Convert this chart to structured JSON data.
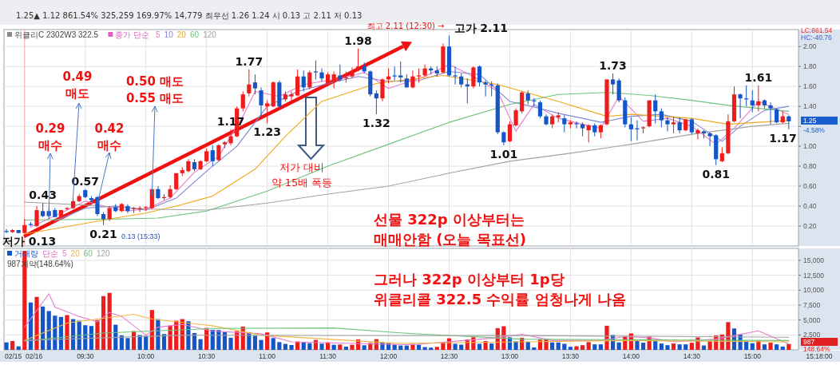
{
  "chart_data": [
    {
      "type": "candlestick",
      "title": "위클리C 2302W3 322.5",
      "legend_title": "종가 단순",
      "legend": "top left",
      "grid": true,
      "tick_labels": "y",
      "xlim": [
        8.83,
        15.38
      ],
      "xticks": [
        {
          "value": 9.5,
          "label": null
        },
        {
          "value": 10,
          "label": null
        },
        {
          "value": 10.5,
          "label": null
        },
        {
          "value": 11,
          "label": null
        },
        {
          "value": 11.5,
          "label": null
        },
        {
          "value": 12,
          "label": null
        },
        {
          "value": 12.5,
          "label": null
        },
        {
          "value": 13,
          "label": null
        },
        {
          "value": 13.5,
          "label": null
        },
        {
          "value": 14,
          "label": null
        },
        {
          "value": 14.5,
          "label": null
        },
        {
          "value": 15,
          "label": null
        }
      ],
      "ylim": [
        0,
        2.17
      ],
      "yticks": [
        {
          "value": 0.2,
          "label": "0.20"
        },
        {
          "value": 0.4,
          "label": "0.40"
        },
        {
          "value": 0.6,
          "label": "0.60"
        },
        {
          "value": 0.8,
          "label": "0.80"
        },
        {
          "value": 1,
          "label": "1.00"
        },
        {
          "value": 1.2,
          "label": null
        },
        {
          "value": 1.4,
          "label": "1.40"
        },
        {
          "value": 1.6,
          "label": "1.60"
        },
        {
          "value": 1.8,
          "label": "1.80"
        },
        {
          "value": 2,
          "label": "2.00"
        }
      ],
      "x": [
        8.85,
        8.9,
        8.95,
        9,
        9.05,
        9.1,
        9.15,
        9.2,
        9.25,
        9.3,
        9.35,
        9.4,
        9.45,
        9.5,
        9.55,
        9.6,
        9.65,
        9.7,
        9.75,
        9.8,
        9.85,
        9.9,
        9.95,
        10,
        10.05,
        10.1,
        10.15,
        10.2,
        10.25,
        10.3,
        10.35,
        10.4,
        10.45,
        10.5,
        10.55,
        10.6,
        10.65,
        10.7,
        10.75,
        10.8,
        10.85,
        10.9,
        10.95,
        11,
        11.05,
        11.1,
        11.15,
        11.2,
        11.25,
        11.3,
        11.35,
        11.4,
        11.45,
        11.5,
        11.55,
        11.6,
        11.65,
        11.7,
        11.75,
        11.8,
        11.85,
        11.9,
        11.95,
        12,
        12.05,
        12.1,
        12.15,
        12.2,
        12.25,
        12.3,
        12.35,
        12.4,
        12.45,
        12.5,
        12.55,
        12.6,
        12.65,
        12.7,
        12.75,
        12.8,
        12.85,
        12.9,
        12.95,
        13,
        13.05,
        13.1,
        13.15,
        13.2,
        13.25,
        13.3,
        13.35,
        13.4,
        13.45,
        13.5,
        13.55,
        13.6,
        13.65,
        13.7,
        13.75,
        13.8,
        13.85,
        13.9,
        13.95,
        14,
        14.05,
        14.1,
        14.15,
        14.2,
        14.25,
        14.3,
        14.35,
        14.4,
        14.45,
        14.5,
        14.55,
        14.6,
        14.65,
        14.7,
        14.75,
        14.8,
        14.85,
        14.9,
        14.95,
        15,
        15.05,
        15.1,
        15.15,
        15.2,
        15.25,
        15.3
      ],
      "ohlc": [
        [
          0.15,
          0.17,
          0.13,
          0.14
        ],
        [
          0.14,
          0.17,
          0.13,
          0.16
        ],
        [
          0.16,
          0.16,
          0.13,
          0.13
        ],
        [
          0.13,
          0.27,
          0.13,
          0.21
        ],
        [
          0.22,
          0.24,
          0.2,
          0.21
        ],
        [
          0.2,
          0.4,
          0.19,
          0.36
        ],
        [
          0.35,
          0.43,
          0.29,
          0.3
        ],
        [
          0.35,
          0.39,
          0.27,
          0.3
        ],
        [
          0.36,
          0.38,
          0.29,
          0.29
        ],
        [
          0.29,
          0.36,
          0.28,
          0.36
        ],
        [
          0.37,
          0.39,
          0.36,
          0.38
        ],
        [
          0.38,
          0.49,
          0.37,
          0.45
        ],
        [
          0.45,
          0.52,
          0.44,
          0.5
        ],
        [
          0.56,
          0.57,
          0.48,
          0.49
        ],
        [
          0.48,
          0.5,
          0.44,
          0.46
        ],
        [
          0.49,
          0.5,
          0.3,
          0.32
        ],
        [
          0.32,
          0.34,
          0.21,
          0.27
        ],
        [
          0.27,
          0.4,
          0.25,
          0.38
        ],
        [
          0.39,
          0.42,
          0.34,
          0.35
        ],
        [
          0.35,
          0.43,
          0.34,
          0.42
        ],
        [
          0.4,
          0.42,
          0.33,
          0.35
        ],
        [
          0.37,
          0.39,
          0.33,
          0.38
        ],
        [
          0.37,
          0.4,
          0.34,
          0.38
        ],
        [
          0.38,
          0.4,
          0.35,
          0.39
        ],
        [
          0.38,
          0.57,
          0.37,
          0.57
        ],
        [
          0.57,
          0.6,
          0.47,
          0.48
        ],
        [
          0.48,
          0.52,
          0.46,
          0.49
        ],
        [
          0.49,
          0.61,
          0.48,
          0.57
        ],
        [
          0.57,
          0.73,
          0.56,
          0.73
        ],
        [
          0.73,
          0.79,
          0.7,
          0.76
        ],
        [
          0.75,
          0.87,
          0.74,
          0.85
        ],
        [
          0.84,
          0.87,
          0.75,
          0.77
        ],
        [
          0.77,
          0.86,
          0.76,
          0.85
        ],
        [
          0.85,
          0.98,
          0.84,
          0.95
        ],
        [
          0.96,
          1.01,
          0.8,
          0.85
        ],
        [
          0.86,
          1.02,
          0.85,
          1.01
        ],
        [
          1.02,
          1.05,
          0.98,
          1.04
        ],
        [
          1.03,
          1.17,
          1.01,
          1.1
        ],
        [
          1.1,
          1.4,
          1.09,
          1.38
        ],
        [
          1.38,
          1.55,
          1.35,
          1.52
        ],
        [
          1.53,
          1.77,
          1.5,
          1.62
        ],
        [
          1.64,
          1.72,
          1.52,
          1.58
        ],
        [
          1.56,
          1.59,
          1.3,
          1.41
        ],
        [
          1.4,
          1.46,
          1.23,
          1.43
        ],
        [
          1.4,
          1.65,
          1.39,
          1.64
        ],
        [
          1.64,
          1.66,
          1.38,
          1.4
        ],
        [
          1.47,
          1.55,
          1.45,
          1.52
        ],
        [
          1.5,
          1.55,
          1.46,
          1.52
        ],
        [
          1.51,
          1.77,
          1.5,
          1.7
        ],
        [
          1.7,
          1.76,
          1.55,
          1.59
        ],
        [
          1.59,
          1.76,
          1.57,
          1.74
        ],
        [
          1.75,
          1.86,
          1.67,
          1.74
        ],
        [
          1.74,
          1.78,
          1.65,
          1.68
        ],
        [
          1.63,
          1.74,
          1.6,
          1.72
        ],
        [
          1.64,
          1.75,
          1.58,
          1.72
        ],
        [
          1.71,
          1.82,
          1.65,
          1.67
        ],
        [
          1.68,
          1.75,
          1.64,
          1.69
        ],
        [
          1.7,
          1.79,
          1.68,
          1.75
        ],
        [
          1.76,
          1.98,
          1.75,
          1.8
        ],
        [
          1.8,
          1.84,
          1.73,
          1.75
        ],
        [
          1.75,
          1.76,
          1.5,
          1.52
        ],
        [
          1.53,
          1.56,
          1.32,
          1.48
        ],
        [
          1.48,
          1.68,
          1.45,
          1.67
        ],
        [
          1.67,
          1.78,
          1.63,
          1.7
        ],
        [
          1.71,
          1.8,
          1.66,
          1.7
        ],
        [
          1.71,
          1.85,
          1.64,
          1.69
        ],
        [
          1.68,
          1.72,
          1.59,
          1.59
        ],
        [
          1.59,
          1.76,
          1.58,
          1.7
        ],
        [
          1.7,
          1.78,
          1.64,
          1.71
        ],
        [
          1.71,
          1.82,
          1.7,
          1.78
        ],
        [
          1.78,
          1.8,
          1.72,
          1.76
        ],
        [
          1.76,
          1.8,
          1.7,
          1.73
        ],
        [
          1.74,
          2.03,
          1.73,
          2
        ],
        [
          2,
          2.11,
          1.7,
          1.71
        ],
        [
          1.71,
          1.8,
          1.62,
          1.7
        ],
        [
          1.7,
          1.73,
          1.59,
          1.62
        ],
        [
          1.62,
          1.68,
          1.43,
          1.6
        ],
        [
          1.6,
          1.8,
          1.58,
          1.79
        ],
        [
          1.8,
          1.81,
          1.6,
          1.64
        ],
        [
          1.64,
          1.66,
          1.5,
          1.62
        ],
        [
          1.62,
          1.65,
          1.5,
          1.61
        ],
        [
          1.61,
          1.63,
          1.12,
          1.14
        ],
        [
          1.14,
          1.15,
          1.01,
          1.04
        ],
        [
          1.05,
          1.25,
          1.04,
          1.22
        ],
        [
          1.21,
          1.38,
          1.2,
          1.36
        ],
        [
          1.35,
          1.55,
          1.33,
          1.54
        ],
        [
          1.53,
          1.56,
          1.42,
          1.46
        ],
        [
          1.46,
          1.48,
          1.4,
          1.45
        ],
        [
          1.44,
          1.46,
          1.28,
          1.3
        ],
        [
          1.3,
          1.32,
          1.21,
          1.22
        ],
        [
          1.22,
          1.32,
          1.18,
          1.3
        ],
        [
          1.29,
          1.34,
          1.24,
          1.31
        ],
        [
          1.28,
          1.31,
          1.14,
          1.22
        ],
        [
          1.22,
          1.26,
          1.18,
          1.24
        ],
        [
          1.23,
          1.25,
          1.18,
          1.22
        ],
        [
          1.22,
          1.24,
          1.1,
          1.18
        ],
        [
          1.16,
          1.22,
          1.04,
          1.21
        ],
        [
          1.21,
          1.23,
          1.1,
          1.14
        ],
        [
          1.14,
          1.22,
          1.08,
          1.21
        ],
        [
          1.22,
          1.67,
          1.21,
          1.67
        ],
        [
          1.67,
          1.73,
          1.52,
          1.62
        ],
        [
          1.66,
          1.68,
          1.44,
          1.46
        ],
        [
          1.46,
          1.49,
          1.19,
          1.22
        ],
        [
          1.22,
          1.29,
          1.05,
          1.17
        ],
        [
          1.18,
          1.26,
          1.06,
          1.17
        ],
        [
          1.18,
          1.2,
          1.13,
          1.19
        ],
        [
          1.2,
          1.46,
          1.19,
          1.46
        ],
        [
          1.46,
          1.52,
          1.23,
          1.35
        ],
        [
          1.35,
          1.38,
          1.19,
          1.26
        ],
        [
          1.26,
          1.29,
          1.15,
          1.22
        ],
        [
          1.22,
          1.3,
          1.13,
          1.24
        ],
        [
          1.24,
          1.29,
          1.13,
          1.16
        ],
        [
          1.16,
          1.27,
          1.15,
          1.27
        ],
        [
          1.27,
          1.28,
          1.12,
          1.14
        ],
        [
          1.13,
          1.18,
          1.07,
          1.16
        ],
        [
          1.15,
          1.16,
          1.08,
          1.13
        ],
        [
          1.13,
          1.14,
          1,
          1.1
        ],
        [
          1.11,
          1.12,
          0.81,
          0.87
        ],
        [
          0.85,
          0.99,
          0.84,
          0.93
        ],
        [
          0.93,
          1.32,
          0.92,
          1.25
        ],
        [
          1.25,
          1.6,
          1.24,
          1.52
        ],
        [
          1.52,
          1.53,
          1.28,
          1.48
        ],
        [
          1.48,
          1.61,
          1.4,
          1.47
        ],
        [
          1.46,
          1.56,
          1.34,
          1.41
        ],
        [
          1.41,
          1.61,
          1.35,
          1.45
        ],
        [
          1.46,
          1.47,
          1.38,
          1.41
        ],
        [
          1.41,
          1.44,
          1.22,
          1.38
        ],
        [
          1.37,
          1.38,
          1.23,
          1.24
        ],
        [
          1.24,
          1.35,
          1.23,
          1.3
        ],
        [
          1.3,
          1.31,
          1.17,
          1.25
        ]
      ],
      "colors": [
        "#1456c8",
        "#ee1c1c",
        "#1456c8",
        "#ee1c1c",
        "#1456c8",
        "#ee1c1c",
        "#1456c8",
        "#1456c8",
        "#1456c8",
        "#ee1c1c",
        "#ee1c1c",
        "#ee1c1c",
        "#ee1c1c",
        "#1456c8",
        "#1456c8",
        "#1456c8",
        "#1456c8",
        "#ee1c1c",
        "#1456c8",
        "#ee1c1c",
        "#1456c8",
        "#ee1c1c",
        "#ee1c1c",
        "#ee1c1c",
        "#ee1c1c",
        "#1456c8",
        "#ee1c1c",
        "#ee1c1c",
        "#ee1c1c",
        "#ee1c1c",
        "#ee1c1c",
        "#1456c8",
        "#ee1c1c",
        "#ee1c1c",
        "#1456c8",
        "#ee1c1c",
        "#ee1c1c",
        "#ee1c1c",
        "#ee1c1c",
        "#ee1c1c",
        "#ee1c1c",
        "#1456c8",
        "#1456c8",
        "#ee1c1c",
        "#ee1c1c",
        "#1456c8",
        "#ee1c1c",
        "#ee1c1c",
        "#ee1c1c",
        "#1456c8",
        "#ee1c1c",
        "#1456c8",
        "#1456c8",
        "#ee1c1c",
        "#ee1c1c",
        "#1456c8",
        "#ee1c1c",
        "#ee1c1c",
        "#ee1c1c",
        "#1456c8",
        "#1456c8",
        "#1456c8",
        "#ee1c1c",
        "#ee1c1c",
        "#1456c8",
        "#1456c8",
        "#1456c8",
        "#ee1c1c",
        "#ee1c1c",
        "#ee1c1c",
        "#1456c8",
        "#1456c8",
        "#ee1c1c",
        "#1456c8",
        "#1456c8",
        "#1456c8",
        "#1456c8",
        "#ee1c1c",
        "#1456c8",
        "#1456c8",
        "#1456c8",
        "#1456c8",
        "#1456c8",
        "#ee1c1c",
        "#ee1c1c",
        "#ee1c1c",
        "#1456c8",
        "#1456c8",
        "#1456c8",
        "#1456c8",
        "#ee1c1c",
        "#ee1c1c",
        "#1456c8",
        "#ee1c1c",
        "#1456c8",
        "#1456c8",
        "#ee1c1c",
        "#1456c8",
        "#ee1c1c",
        "#ee1c1c",
        "#1456c8",
        "#1456c8",
        "#1456c8",
        "#1456c8",
        "#1456c8",
        "#ee1c1c",
        "#ee1c1c",
        "#1456c8",
        "#1456c8",
        "#1456c8",
        "#ee1c1c",
        "#1456c8",
        "#ee1c1c",
        "#1456c8",
        "#ee1c1c",
        "#1456c8",
        "#1456c8",
        "#1456c8",
        "#ee1c1c",
        "#ee1c1c",
        "#ee1c1c",
        "#1456c8",
        "#1456c8",
        "#1456c8",
        "#ee1c1c",
        "#1456c8",
        "#1456c8",
        "#1456c8",
        "#ee1c1c",
        "#1456c8"
      ],
      "series": [
        {
          "type": "line",
          "name": "5",
          "color": "#e77ccc",
          "x": [
            9.05,
            9.3,
            9.5,
            9.65,
            9.85,
            10,
            10.2,
            10.4,
            10.6,
            10.8,
            10.9,
            11.1,
            11.3,
            11.6,
            11.8,
            12,
            12.3,
            12.5,
            12.7,
            12.9,
            13.05,
            13.2,
            13.4,
            13.6,
            13.75,
            13.9,
            14.1,
            14.3,
            14.5,
            14.7,
            14.85,
            15.05,
            15.3
          ],
          "values": [
            0.19,
            0.33,
            0.45,
            0.4,
            0.35,
            0.37,
            0.48,
            0.74,
            0.9,
            1.3,
            1.55,
            1.5,
            1.62,
            1.68,
            1.74,
            1.58,
            1.7,
            1.82,
            1.7,
            1.55,
            1.15,
            1.42,
            1.28,
            1.22,
            1.18,
            1.5,
            1.25,
            1.28,
            1.2,
            1.02,
            1.18,
            1.45,
            1.32
          ]
        },
        {
          "type": "line",
          "name": "10",
          "color": "#7d86d6",
          "x": [
            9.25,
            9.5,
            9.75,
            10,
            10.25,
            10.5,
            10.75,
            11,
            11.25,
            11.5,
            11.75,
            12,
            12.25,
            12.5,
            12.75,
            13,
            13.25,
            13.4,
            13.6,
            13.75,
            14,
            14.25,
            14.5,
            14.75,
            14.9,
            15.1,
            15.3
          ],
          "values": [
            0.25,
            0.38,
            0.4,
            0.36,
            0.48,
            0.75,
            1,
            1.4,
            1.55,
            1.63,
            1.7,
            1.65,
            1.66,
            1.75,
            1.72,
            1.45,
            1.38,
            1.33,
            1.28,
            1.24,
            1.3,
            1.32,
            1.25,
            1.05,
            1.2,
            1.36,
            1.4
          ]
        },
        {
          "type": "line",
          "name": "20",
          "color": "#f0a818",
          "x": [
            9,
            9.75,
            10,
            10.25,
            10.55,
            10.9,
            11.15,
            11.45,
            11.9,
            12.45,
            12.9,
            13.4,
            13.8,
            14,
            14.5,
            14.8,
            15.3
          ],
          "values": [
            0.12,
            0.28,
            0.33,
            0.4,
            0.5,
            0.77,
            1.1,
            1.45,
            1.63,
            1.71,
            1.62,
            1.45,
            1.3,
            1.32,
            1.28,
            1.22,
            1.26
          ]
        },
        {
          "type": "line",
          "name": "60",
          "color": "#6cc47c",
          "x": [
            9,
            9.75,
            10.1,
            10.5,
            11,
            11.5,
            12,
            12.5,
            13,
            13.4,
            13.8,
            14.15,
            14.5,
            14.8,
            15.3
          ],
          "values": [
            0.26,
            0.27,
            0.28,
            0.35,
            0.55,
            0.8,
            1.02,
            1.24,
            1.42,
            1.52,
            1.54,
            1.51,
            1.46,
            1.41,
            1.35
          ]
        },
        {
          "type": "line",
          "name": "120",
          "color": "#a3a3a3",
          "x": [
            9,
            9.5,
            10,
            10.5,
            11,
            11.5,
            12,
            12.5,
            13,
            13.5,
            14,
            14.5,
            15,
            15.3
          ],
          "values": [
            0.44,
            0.41,
            0.37,
            0.36,
            0.43,
            0.52,
            0.6,
            0.73,
            0.85,
            0.93,
            1.02,
            1.12,
            1.2,
            1.23
          ]
        }
      ],
      "ref_lines": [
        {
          "axis": "x",
          "value": 9,
          "color": "#f4a0a0"
        }
      ],
      "annotations": [
        {
          "text": "저가 0.13",
          "x": 9,
          "y": 0.13
        },
        {
          "text": "0.43",
          "x": 9.15,
          "y": 0.43
        },
        {
          "text": "0.57",
          "x": 9.5,
          "y": 0.57
        },
        {
          "text": "0.21",
          "x": 9.65,
          "y": 0.21
        },
        {
          "text": "1.17",
          "x": 10.7,
          "y": 1.17
        },
        {
          "text": "1.23",
          "x": 11,
          "y": 1.23
        },
        {
          "text": "1.77",
          "x": 10.85,
          "y": 1.77
        },
        {
          "text": "1.98",
          "x": 11.75,
          "y": 1.98
        },
        {
          "text": "1.32",
          "x": 11.9,
          "y": 1.32
        },
        {
          "text": "고가 2.11",
          "x": 12.5,
          "y": 2.11
        },
        {
          "text": "1.01",
          "x": 12.95,
          "y": 1.01
        },
        {
          "text": "1.73",
          "x": 13.85,
          "y": 1.73
        },
        {
          "text": "0.81",
          "x": 14.7,
          "y": 0.81
        },
        {
          "text": "1.61",
          "x": 15.05,
          "y": 1.61
        },
        {
          "text": "1.17",
          "x": 15.3,
          "y": 1.17
        },
        {
          "text": "0.29\n매수",
          "x": 9.2,
          "y": 0.29
        },
        {
          "text": "0.49\n매도",
          "x": 9.4,
          "y": 0.49
        },
        {
          "text": "0.42\n매수",
          "x": 9.6,
          "y": 0.42
        },
        {
          "text": "0.50 매도\n0.55 매도",
          "x": 10.05,
          "y": 0.5
        },
        "저가 대비\n약 15배 폭등",
        "선물 322p 이상부터는\n매매안함 (오늘 목표선)",
        {
          "text": "최고 2.11 (12:30) →",
          "x": 12.5,
          "y": 2.11
        },
        "0.13 (15:33)",
        "LC:861.54",
        "HC:-40.76",
        "1.25",
        "-4.58%",
        "1.25▲  1.12  861.54%  325,259  169.97%  14,779  최우선  1.26  1.24  시 0.13  고 2.11  저 0.13"
      ]
    },
    {
      "type": "bar",
      "legend_title": "단순",
      "legend": "top left",
      "grid": true,
      "xlim": [
        8.83,
        15.38
      ],
      "xticks": [
        {
          "value": 9.5,
          "label": "09:30"
        },
        {
          "value": 10,
          "label": "10:00"
        },
        {
          "value": 10.5,
          "label": "10:30"
        },
        {
          "value": 11,
          "label": "11:00"
        },
        {
          "value": 11.5,
          "label": "11:30"
        },
        {
          "value": 12,
          "label": "12:00"
        },
        {
          "value": 12.5,
          "label": "12:30"
        },
        {
          "value": 13,
          "label": "13:00"
        },
        {
          "value": 13.5,
          "label": "13:30"
        },
        {
          "value": 14,
          "label": "14:00"
        },
        {
          "value": 14.5,
          "label": "14:30"
        },
        {
          "value": 15,
          "label": "15:00"
        }
      ],
      "ylim": [
        0,
        17000
      ],
      "yticks": [
        {
          "value": 2500,
          "label": "2,500"
        },
        {
          "value": 5000,
          "label": "5,000"
        },
        {
          "value": 7500,
          "label": "7,500"
        },
        {
          "value": 10000,
          "label": "10,000"
        },
        {
          "value": 12500,
          "label": "12,500"
        },
        {
          "value": 15000,
          "label": "15,000"
        }
      ],
      "x": [
        8.85,
        8.9,
        8.95,
        9,
        9.05,
        9.1,
        9.15,
        9.2,
        9.25,
        9.3,
        9.35,
        9.4,
        9.45,
        9.5,
        9.55,
        9.6,
        9.65,
        9.7,
        9.75,
        9.8,
        9.85,
        9.9,
        9.95,
        10,
        10.05,
        10.1,
        10.15,
        10.2,
        10.25,
        10.3,
        10.35,
        10.4,
        10.45,
        10.5,
        10.55,
        10.6,
        10.65,
        10.7,
        10.75,
        10.8,
        10.85,
        10.9,
        10.95,
        11,
        11.05,
        11.1,
        11.15,
        11.2,
        11.25,
        11.3,
        11.35,
        11.4,
        11.45,
        11.5,
        11.55,
        11.6,
        11.65,
        11.7,
        11.75,
        11.8,
        11.85,
        11.9,
        11.95,
        12,
        12.05,
        12.1,
        12.15,
        12.2,
        12.25,
        12.3,
        12.35,
        12.4,
        12.45,
        12.5,
        12.55,
        12.6,
        12.65,
        12.7,
        12.75,
        12.8,
        12.85,
        12.9,
        12.95,
        13,
        13.05,
        13.1,
        13.15,
        13.2,
        13.25,
        13.3,
        13.35,
        13.4,
        13.45,
        13.5,
        13.55,
        13.6,
        13.65,
        13.7,
        13.75,
        13.8,
        13.85,
        13.9,
        13.95,
        14,
        14.05,
        14.1,
        14.15,
        14.2,
        14.25,
        14.3,
        14.35,
        14.4,
        14.45,
        14.5,
        14.55,
        14.6,
        14.65,
        14.7,
        14.75,
        14.8,
        14.85,
        14.9,
        14.95,
        15,
        15.05,
        15.1,
        15.15,
        15.2,
        15.25,
        15.3
      ],
      "series": [
        {
          "name": "거래량",
          "values": [
            1250,
            1480,
            580,
            16580,
            7930,
            8870,
            7260,
            6500,
            5730,
            5510,
            5820,
            5150,
            4880,
            4120,
            3990,
            4970,
            9000,
            9540,
            4210,
            2420,
            1970,
            3140,
            2460,
            2330,
            6680,
            5150,
            2640,
            4080,
            4880,
            5150,
            4790,
            2820,
            1790,
            3670,
            3360,
            3320,
            2960,
            2020,
            3140,
            3900,
            2960,
            2370,
            1660,
            2910,
            1970,
            1300,
            990,
            810,
            1390,
            1250,
            1120,
            1660,
            1030,
            1250,
            850,
            900,
            540,
            850,
            1750,
            760,
            1160,
            1790,
            1250,
            1160,
            900,
            720,
            720,
            990,
            870,
            460,
            370,
            500,
            1290,
            1930,
            1010,
            870,
            1740,
            2110,
            1010,
            1470,
            1060,
            3630,
            3950,
            2110,
            1420,
            2020,
            1330,
            410,
            1700,
            1880,
            1240,
            1240,
            1010,
            500,
            600,
            780,
            1290,
            920,
            920,
            4040,
            2480,
            1240,
            2160,
            2750,
            1650,
            1190,
            2250,
            1470,
            1060,
            780,
            1060,
            920,
            920,
            1190,
            2070,
            730,
            1510,
            2390,
            2570,
            4640,
            3580,
            2570,
            1510,
            1100,
            1560,
            920,
            1190,
            920,
            550,
            987
          ],
          "colors": [
            "#1456c8",
            "#ee1c1c",
            "#1456c8",
            "#ee1c1c",
            "#1456c8",
            "#ee1c1c",
            "#1456c8",
            "#1456c8",
            "#1456c8",
            "#1456c8",
            "#ee1c1c",
            "#1456c8",
            "#1456c8",
            "#1456c8",
            "#1456c8",
            "#ee1c1c",
            "#ee1c1c",
            "#ee1c1c",
            "#1456c8",
            "#1456c8",
            "#1456c8",
            "#ee1c1c",
            "#1456c8",
            "#1456c8",
            "#ee1c1c",
            "#1456c8",
            "#1456c8",
            "#ee1c1c",
            "#ee1c1c",
            "#ee1c1c",
            "#1456c8",
            "#1456c8",
            "#1456c8",
            "#ee1c1c",
            "#1456c8",
            "#1456c8",
            "#1456c8",
            "#1456c8",
            "#ee1c1c",
            "#ee1c1c",
            "#1456c8",
            "#1456c8",
            "#1456c8",
            "#ee1c1c",
            "#1456c8",
            "#1456c8",
            "#1456c8",
            "#1456c8",
            "#ee1c1c",
            "#1456c8",
            "#1456c8",
            "#ee1c1c",
            "#1456c8",
            "#ee1c1c",
            "#1456c8",
            "#ee1c1c",
            "#1456c8",
            "#ee1c1c",
            "#ee1c1c",
            "#1456c8",
            "#ee1c1c",
            "#ee1c1c",
            "#1456c8",
            "#1456c8",
            "#1456c8",
            "#1456c8",
            "#1456c8",
            "#ee1c1c",
            "#1456c8",
            "#1456c8",
            "#1456c8",
            "#ee1c1c",
            "#ee1c1c",
            "#ee1c1c",
            "#1456c8",
            "#1456c8",
            "#ee1c1c",
            "#ee1c1c",
            "#1456c8",
            "#ee1c1c",
            "#1456c8",
            "#ee1c1c",
            "#ee1c1c",
            "#1456c8",
            "#1456c8",
            "#ee1c1c",
            "#1456c8",
            "#1456c8",
            "#ee1c1c",
            "#ee1c1c",
            "#1456c8",
            "#1456c8",
            "#1456c8",
            "#1456c8",
            "#ee1c1c",
            "#ee1c1c",
            "#ee1c1c",
            "#1456c8",
            "#1456c8",
            "#ee1c1c",
            "#1456c8",
            "#1456c8",
            "#ee1c1c",
            "#ee1c1c",
            "#1456c8",
            "#1456c8",
            "#ee1c1c",
            "#1456c8",
            "#1456c8",
            "#1456c8",
            "#ee1c1c",
            "#1456c8",
            "#1456c8",
            "#ee1c1c",
            "#ee1c1c",
            "#1456c8",
            "#ee1c1c",
            "#ee1c1c",
            "#ee1c1c",
            "#ee1c1c",
            "#1456c8",
            "#1456c8",
            "#1456c8",
            "#1456c8",
            "#ee1c1c",
            "#1456c8",
            "#ee1c1c",
            "#1456c8",
            "#1456c8",
            "#ee1c1c"
          ]
        },
        {
          "type": "line",
          "name": "5",
          "color": "#e77ccc",
          "x": [
            9,
            9.2,
            9.25,
            9.45,
            9.6,
            9.7,
            9.8,
            10,
            10.1,
            10.3,
            10.55,
            10.95,
            11.2,
            12.05,
            12.2,
            12.9,
            13.1,
            13.35,
            13.75,
            13.95,
            14.15,
            14.35,
            14.7,
            15.05,
            15.3
          ],
          "values": [
            3800,
            9400,
            7170,
            5600,
            4700,
            6270,
            5600,
            2460,
            3800,
            4250,
            3140,
            2690,
            1340,
            900,
            870,
            2020,
            2620,
            1560,
            1560,
            2250,
            2020,
            1330,
            1790,
            3170,
            960
          ]
        },
        {
          "type": "line",
          "name": "20",
          "color": "#f0b848",
          "x": [
            9,
            9.35,
            9.9,
            10.05,
            10.55,
            10.95,
            12.05,
            12.2,
            13.1,
            13.95,
            15.3
          ],
          "values": [
            1570,
            4480,
            5960,
            5150,
            4030,
            2460,
            1120,
            1100,
            1330,
            1560,
            1330
          ]
        },
        {
          "type": "line",
          "name": "60",
          "color": "#6cc47c",
          "x": [
            9,
            9.65,
            10.55,
            11.55,
            12.05,
            12.2,
            13.1,
            15.3
          ],
          "values": [
            1480,
            2820,
            3580,
            3670,
            2910,
            2710,
            1790,
            1560
          ]
        },
        {
          "type": "line",
          "name": "120",
          "color": "#a3a3a3",
          "x": [
            9,
            10.3,
            12.05,
            13.1,
            15.3
          ],
          "values": [
            1570,
            2460,
            2370,
            2390,
            2110
          ]
        }
      ],
      "annotations": [
        "987계약(148.64%)",
        "987",
        "148.64%",
        "15:18:00",
        "02/15",
        "02/16",
        "그러나 322p 이상부터 1p당\n위클리콜 322.5 수익률 엄청나게 나옴"
      ]
    }
  ]
}
